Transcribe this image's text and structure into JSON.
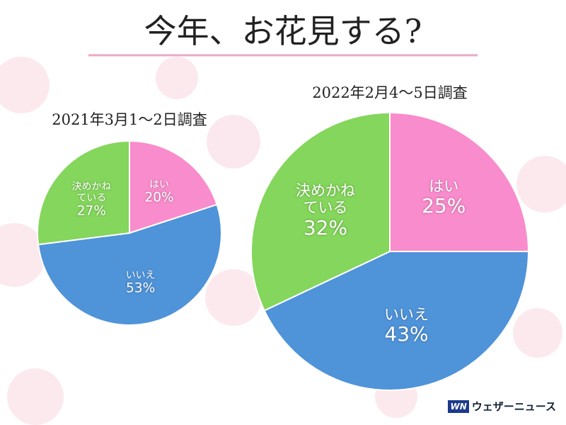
{
  "title": "今年、お花見する?",
  "chart_data": [
    {
      "type": "pie",
      "subtitle": "2021年3月1〜2日調査",
      "categories": [
        "はい",
        "いいえ",
        "決めかねている"
      ],
      "values": [
        20,
        53,
        27
      ],
      "value_labels": [
        "20%",
        "53%",
        "27%"
      ],
      "colors": [
        "#f98ccc",
        "#4f93d9",
        "#84d65c"
      ]
    },
    {
      "type": "pie",
      "subtitle": "2022年2月4〜5日調査",
      "categories": [
        "はい",
        "いいえ",
        "決めかねている"
      ],
      "values": [
        25,
        43,
        32
      ],
      "value_labels": [
        "25%",
        "43%",
        "32%"
      ],
      "colors": [
        "#f98ccc",
        "#4f93d9",
        "#84d65c"
      ]
    }
  ],
  "logo": {
    "mark": "WN",
    "text": "ウェザーニュース"
  }
}
